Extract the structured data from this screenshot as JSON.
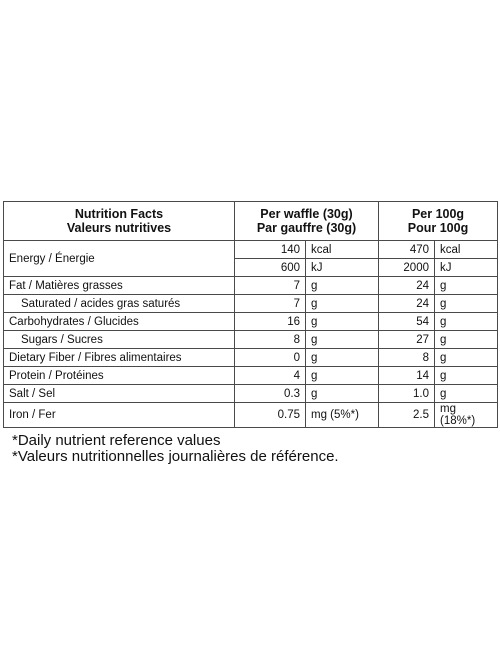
{
  "table": {
    "header": {
      "label": [
        "Nutrition Facts",
        "Valeurs nutritives"
      ],
      "per_waffle": [
        "Per waffle (30g)",
        "Par gauffre (30g)"
      ],
      "per_100g": [
        "Per 100g",
        "Pour 100g"
      ]
    },
    "rows": [
      {
        "label": "Energy / Énergie",
        "lines": [
          [
            140,
            "kcal",
            470,
            "kcal"
          ],
          [
            600,
            "kJ",
            2000,
            "kJ"
          ]
        ]
      },
      {
        "label": "Fat / Matières grasses",
        "lines": [
          [
            7,
            "g",
            24,
            "g"
          ]
        ]
      },
      {
        "label": "Saturated / acides gras saturés",
        "lines": [
          [
            7,
            "g",
            24,
            "g"
          ]
        ]
      },
      {
        "label": "Carbohydrates / Glucides",
        "lines": [
          [
            16,
            "g",
            54,
            "g"
          ]
        ]
      },
      {
        "label": "Sugars / Sucres",
        "lines": [
          [
            8,
            "g",
            27,
            "g"
          ]
        ]
      },
      {
        "label": "Dietary Fiber / Fibres alimentaires",
        "lines": [
          [
            0,
            "g",
            8,
            "g"
          ]
        ]
      },
      {
        "label": "Protein / Protéines",
        "lines": [
          [
            4,
            "g",
            14,
            "g"
          ]
        ]
      },
      {
        "label": "Salt / Sel",
        "lines": [
          [
            0.3,
            "g",
            "1.0",
            "g"
          ]
        ]
      },
      {
        "label": "Iron / Fer",
        "lines": [
          [
            0.75,
            "mg (5%*)",
            2.5,
            "mg (18%*)"
          ]
        ]
      }
    ]
  },
  "footnotes": [
    "*Daily nutrient reference values",
    "*Valeurs nutritionnelles journalières de référence."
  ]
}
